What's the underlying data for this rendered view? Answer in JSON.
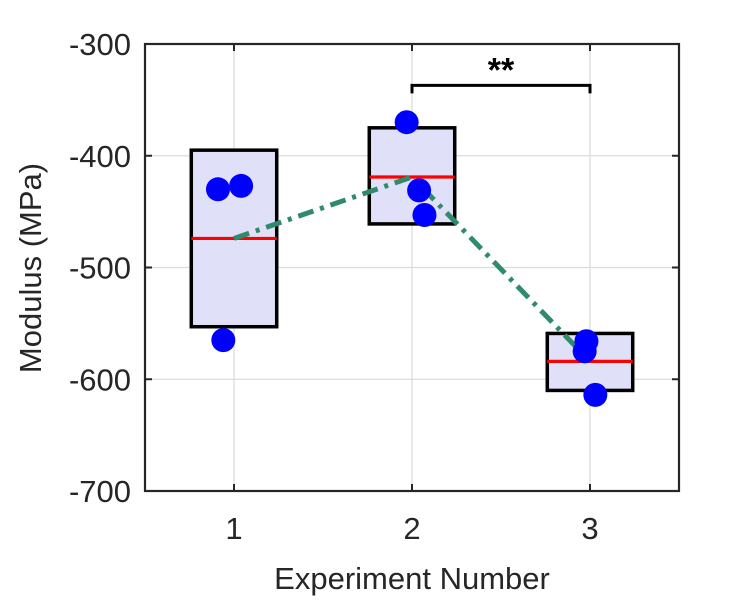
{
  "chart_data": {
    "type": "box-scatter",
    "title": "",
    "xlabel": "Experiment Number",
    "ylabel": "Modulus (MPa)",
    "xlim": [
      0.5,
      3.5
    ],
    "ylim": [
      -700,
      -300
    ],
    "xticks": [
      1,
      2,
      3
    ],
    "xtick_labels": [
      "1",
      "2",
      "3"
    ],
    "yticks": [
      -700,
      -600,
      -500,
      -400,
      -300
    ],
    "ytick_labels": [
      "-700",
      "-600",
      "-500",
      "-400",
      "-300"
    ],
    "grid": true,
    "boxes": [
      {
        "x": 1,
        "low": -553,
        "high": -395,
        "median": -474
      },
      {
        "x": 2,
        "low": -461,
        "high": -375,
        "median": -419
      },
      {
        "x": 3,
        "low": -610,
        "high": -559,
        "median": -584
      }
    ],
    "points": [
      {
        "x": 0.91,
        "y": -430
      },
      {
        "x": 1.04,
        "y": -427
      },
      {
        "x": 0.94,
        "y": -565
      },
      {
        "x": 1.97,
        "y": -370
      },
      {
        "x": 2.04,
        "y": -431
      },
      {
        "x": 2.07,
        "y": -453
      },
      {
        "x": 2.97,
        "y": -575
      },
      {
        "x": 2.98,
        "y": -566
      },
      {
        "x": 3.03,
        "y": -614
      }
    ],
    "trend": {
      "x": [
        1,
        2,
        3
      ],
      "y": [
        -474,
        -419,
        -584
      ],
      "style": "dash-dot"
    },
    "significance": [
      {
        "from": 2,
        "to": 3,
        "y": -337,
        "label": "**"
      }
    ],
    "colors": {
      "box_fill": "#e0e0f9",
      "box_edge": "#000000",
      "median": "#ff0000",
      "points": "#0000ff",
      "trend": "#2e8b6b",
      "grid": "#dcdcdc",
      "axis": "#262626"
    }
  }
}
